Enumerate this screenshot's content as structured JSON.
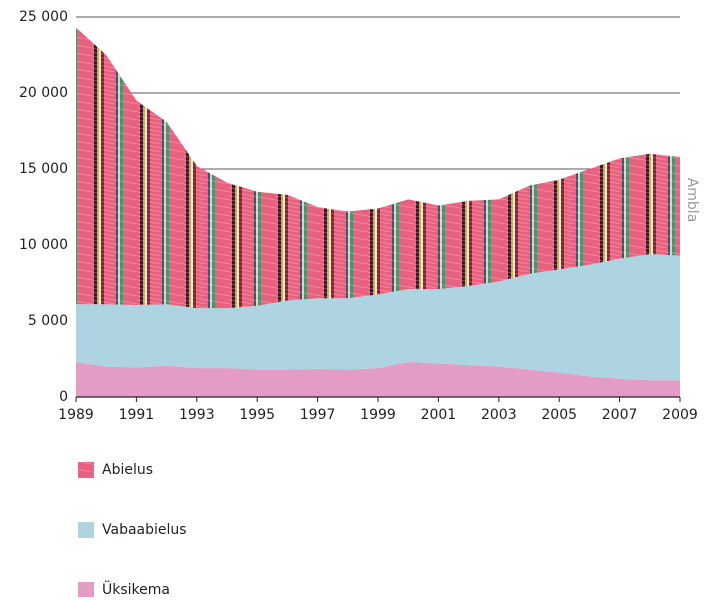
{
  "chart_data": {
    "type": "stacked-area",
    "x": [
      1989,
      1990,
      1991,
      1992,
      1993,
      1994,
      1995,
      1996,
      1997,
      1998,
      1999,
      2000,
      2001,
      2002,
      2003,
      2004,
      2005,
      2006,
      2007,
      2008,
      2009
    ],
    "series": [
      {
        "name": "Üksikema",
        "color": "#e39cc4",
        "values": [
          2300,
          2000,
          1950,
          2050,
          1900,
          1900,
          1800,
          1800,
          1850,
          1800,
          1900,
          2300,
          2200,
          2100,
          2000,
          1800,
          1600,
          1350,
          1200,
          1100,
          1100
        ]
      },
      {
        "name": "Vabaabielus",
        "color": "#add4e0",
        "values": [
          3800,
          4100,
          4100,
          4050,
          3950,
          3950,
          4200,
          4550,
          4650,
          4700,
          4850,
          4800,
          4900,
          5200,
          5600,
          6300,
          6800,
          7350,
          7900,
          8300,
          8200
        ]
      },
      {
        "name": "Abielus",
        "color": "#e8617f",
        "values": [
          18200,
          16400,
          13450,
          12000,
          9350,
          8250,
          7500,
          6950,
          6000,
          5700,
          5650,
          5900,
          5500,
          5600,
          5400,
          5800,
          5900,
          6300,
          6600,
          6600,
          6500
        ]
      }
    ],
    "annotation": "Ambla",
    "xlim": [
      1989,
      2009
    ],
    "xticks": [
      1989,
      1991,
      1993,
      1995,
      1997,
      1999,
      2001,
      2003,
      2005,
      2007,
      2009
    ],
    "ylim": [
      0,
      25000
    ],
    "yticks": [
      0,
      {
        "value": 5000,
        "label": "5 000"
      },
      {
        "value": 10000,
        "label": "10 000"
      },
      {
        "value": 15000,
        "label": "15 000"
      },
      {
        "value": 20000,
        "label": "20 000"
      },
      {
        "value": 25000,
        "label": "25 000"
      }
    ],
    "grid": true
  }
}
